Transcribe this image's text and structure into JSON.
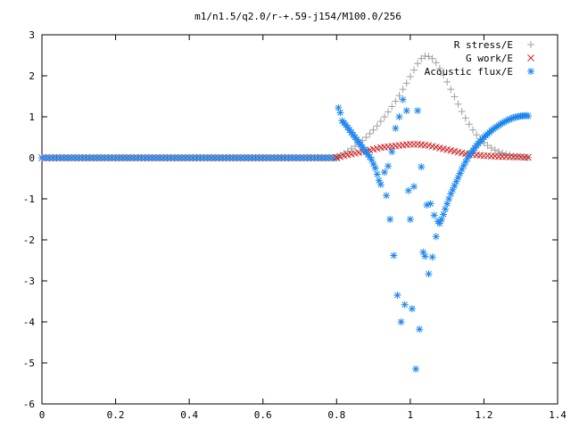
{
  "chart_data": {
    "type": "scatter",
    "title": "m1/n1.5/q2.0/r-+.59-j154/M100.0/256",
    "xlabel": "",
    "ylabel": "",
    "xlim": [
      0,
      1.4
    ],
    "ylim": [
      -6,
      3
    ],
    "xticks": [
      {
        "value": 0,
        "label": "0"
      },
      {
        "value": 0.2,
        "label": "0.2"
      },
      {
        "value": 0.4,
        "label": "0.4"
      },
      {
        "value": 0.6,
        "label": "0.6"
      },
      {
        "value": 0.8,
        "label": "0.8"
      },
      {
        "value": 1.0,
        "label": "1"
      },
      {
        "value": 1.2,
        "label": "1.2"
      },
      {
        "value": 1.4,
        "label": "1.4"
      }
    ],
    "yticks": [
      {
        "value": 3,
        "label": "3"
      },
      {
        "value": 2,
        "label": "2"
      },
      {
        "value": 1,
        "label": "1"
      },
      {
        "value": 0,
        "label": "0"
      },
      {
        "value": -1,
        "label": "-1"
      },
      {
        "value": -2,
        "label": "-2"
      },
      {
        "value": -3,
        "label": "-3"
      },
      {
        "value": -4,
        "label": "-4"
      },
      {
        "value": -5,
        "label": "-5"
      },
      {
        "value": -6,
        "label": "-6"
      }
    ],
    "grid": false,
    "legend_position": "top-right",
    "series": [
      {
        "name": "R stress/E",
        "marker": "plus",
        "color": "#a0a0a0",
        "x": [
          0.8,
          0.81,
          0.82,
          0.83,
          0.84,
          0.85,
          0.86,
          0.87,
          0.88,
          0.89,
          0.9,
          0.91,
          0.92,
          0.93,
          0.94,
          0.95,
          0.96,
          0.97,
          0.98,
          0.99,
          1.0,
          1.01,
          1.02,
          1.03,
          1.04,
          1.05,
          1.06,
          1.07,
          1.08,
          1.09,
          1.1,
          1.11,
          1.12,
          1.13,
          1.14,
          1.15,
          1.16,
          1.17,
          1.18,
          1.19,
          1.2,
          1.21,
          1.22,
          1.23,
          1.24,
          1.25,
          1.26,
          1.27,
          1.28,
          1.29,
          1.3,
          1.31,
          1.32
        ],
        "y": [
          0.02,
          0.06,
          0.11,
          0.16,
          0.22,
          0.28,
          0.35,
          0.42,
          0.5,
          0.59,
          0.68,
          0.78,
          0.89,
          1.0,
          1.12,
          1.25,
          1.38,
          1.52,
          1.67,
          1.82,
          1.98,
          2.14,
          2.3,
          2.42,
          2.48,
          2.47,
          2.42,
          2.32,
          2.18,
          2.02,
          1.85,
          1.67,
          1.49,
          1.31,
          1.13,
          0.97,
          0.82,
          0.68,
          0.56,
          0.46,
          0.37,
          0.3,
          0.24,
          0.19,
          0.15,
          0.12,
          0.09,
          0.07,
          0.05,
          0.04,
          0.03,
          0.02,
          0.01
        ]
      },
      {
        "name": "G work/E",
        "marker": "cross",
        "color": "#d02020",
        "x": [
          0.8,
          0.81,
          0.82,
          0.83,
          0.84,
          0.85,
          0.86,
          0.87,
          0.88,
          0.89,
          0.9,
          0.91,
          0.92,
          0.93,
          0.94,
          0.95,
          0.96,
          0.97,
          0.98,
          0.99,
          1.0,
          1.01,
          1.02,
          1.03,
          1.04,
          1.05,
          1.06,
          1.07,
          1.08,
          1.09,
          1.1,
          1.11,
          1.12,
          1.13,
          1.14,
          1.15,
          1.16,
          1.17,
          1.18,
          1.19,
          1.2,
          1.21,
          1.22,
          1.23,
          1.24,
          1.25,
          1.26,
          1.27,
          1.28,
          1.29,
          1.3,
          1.31,
          1.32
        ],
        "y": [
          0.01,
          0.03,
          0.05,
          0.07,
          0.09,
          0.11,
          0.13,
          0.15,
          0.17,
          0.19,
          0.21,
          0.23,
          0.25,
          0.26,
          0.27,
          0.28,
          0.29,
          0.3,
          0.31,
          0.32,
          0.33,
          0.33,
          0.33,
          0.32,
          0.31,
          0.3,
          0.28,
          0.26,
          0.24,
          0.22,
          0.2,
          0.18,
          0.16,
          0.14,
          0.12,
          0.1,
          0.09,
          0.08,
          0.07,
          0.06,
          0.05,
          0.05,
          0.04,
          0.04,
          0.03,
          0.03,
          0.03,
          0.02,
          0.02,
          0.02,
          0.02,
          0.01,
          0.01
        ]
      },
      {
        "name": "Acoustic flux/E",
        "marker": "star",
        "color": "#1c86ee",
        "x": [
          0.805,
          0.81,
          0.815,
          0.82,
          0.825,
          0.83,
          0.835,
          0.84,
          0.845,
          0.85,
          0.855,
          0.86,
          0.865,
          0.87,
          0.875,
          0.88,
          0.885,
          0.89,
          0.895,
          0.9,
          0.905,
          0.91,
          0.915,
          0.92,
          0.93,
          0.935,
          0.94,
          0.945,
          0.95,
          0.955,
          0.96,
          0.965,
          0.97,
          0.975,
          0.98,
          0.985,
          0.99,
          0.995,
          1.0,
          1.005,
          1.01,
          1.015,
          1.02,
          1.025,
          1.03,
          1.035,
          1.04,
          1.045,
          1.05,
          1.055,
          1.06,
          1.065,
          1.07,
          1.075,
          1.08,
          1.085,
          1.09,
          1.095,
          1.1,
          1.105,
          1.11,
          1.115,
          1.12,
          1.125,
          1.13,
          1.135,
          1.14,
          1.145,
          1.15,
          1.155,
          1.16,
          1.165,
          1.17,
          1.175,
          1.18,
          1.185,
          1.19,
          1.195,
          1.2,
          1.205,
          1.21,
          1.215,
          1.22,
          1.225,
          1.23,
          1.235,
          1.24,
          1.245,
          1.25,
          1.255,
          1.26,
          1.265,
          1.27,
          1.275,
          1.28,
          1.285,
          1.29,
          1.295,
          1.3,
          1.305,
          1.31,
          1.315,
          1.32
        ],
        "y": [
          1.22,
          1.1,
          0.9,
          0.85,
          0.8,
          0.74,
          0.68,
          0.62,
          0.56,
          0.5,
          0.44,
          0.38,
          0.32,
          0.26,
          0.2,
          0.14,
          0.08,
          0.02,
          -0.05,
          -0.15,
          -0.25,
          -0.4,
          -0.55,
          -0.65,
          -0.35,
          -0.92,
          -0.2,
          -1.5,
          0.15,
          -2.38,
          0.72,
          -3.35,
          1.0,
          -4.0,
          1.42,
          -3.58,
          1.15,
          -0.8,
          -1.5,
          -3.68,
          -0.7,
          -5.15,
          1.15,
          -4.18,
          -0.22,
          -2.3,
          -2.4,
          -1.15,
          -2.83,
          -1.12,
          -2.42,
          -1.4,
          -1.92,
          -1.55,
          -1.6,
          -1.5,
          -1.38,
          -1.25,
          -1.12,
          -1.0,
          -0.88,
          -0.78,
          -0.68,
          -0.58,
          -0.48,
          -0.38,
          -0.28,
          -0.19,
          -0.1,
          -0.02,
          0.06,
          0.12,
          0.18,
          0.24,
          0.3,
          0.35,
          0.4,
          0.45,
          0.5,
          0.54,
          0.58,
          0.62,
          0.66,
          0.7,
          0.73,
          0.76,
          0.79,
          0.82,
          0.85,
          0.87,
          0.9,
          0.92,
          0.94,
          0.96,
          0.98,
          0.99,
          1.0,
          1.01,
          1.02,
          1.02,
          1.03,
          1.03,
          1.02
        ]
      }
    ],
    "baseline": {
      "x_start": 0,
      "x_end": 0.8,
      "y": 0,
      "step": 0.01,
      "colors": [
        "#d02020",
        "#8fbc8f",
        "#1c86ee"
      ]
    }
  }
}
